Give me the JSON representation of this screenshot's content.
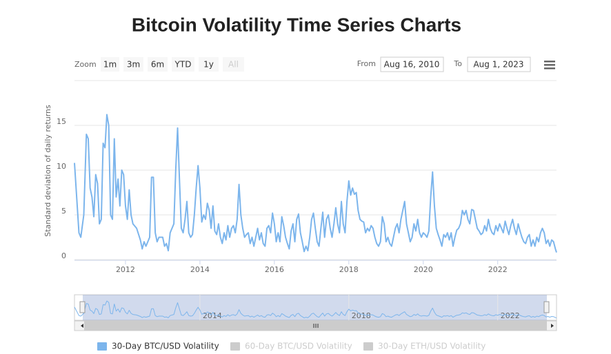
{
  "chart_data": {
    "type": "line",
    "title": "Bitcoin Volatility Time Series Charts",
    "ylabel": "Standard deviation of daily returns",
    "range_selector": {
      "zoom_label": "Zoom",
      "buttons": [
        "1m",
        "3m",
        "6m",
        "YTD",
        "1y",
        "All"
      ],
      "from_label": "From",
      "from_value": "Aug 16, 2010",
      "to_label": "To",
      "to_value": "Aug 1, 2023"
    },
    "xlim": [
      2010.63,
      2023.58
    ],
    "xticks": [
      2012,
      2014,
      2016,
      2018,
      2020,
      2022
    ],
    "navigator_xticks": [
      2014,
      2018,
      2022
    ],
    "ylim": [
      0,
      20
    ],
    "yticks": [
      0,
      5,
      10,
      15
    ],
    "grid": true,
    "x": [
      2010.63,
      2010.75,
      2010.8,
      2010.88,
      2010.95,
      2011.0,
      2011.05,
      2011.1,
      2011.15,
      2011.2,
      2011.25,
      2011.3,
      2011.35,
      2011.4,
      2011.45,
      2011.5,
      2011.55,
      2011.6,
      2011.65,
      2011.7,
      2011.75,
      2011.8,
      2011.85,
      2011.9,
      2011.95,
      2012.0,
      2012.05,
      2012.1,
      2012.15,
      2012.2,
      2012.3,
      2012.4,
      2012.45,
      2012.5,
      2012.55,
      2012.65,
      2012.7,
      2012.75,
      2012.8,
      2012.85,
      2012.9,
      2013.0,
      2013.05,
      2013.1,
      2013.15,
      2013.2,
      2013.3,
      2013.35,
      2013.4,
      2013.45,
      2013.5,
      2013.55,
      2013.6,
      2013.65,
      2013.7,
      2013.75,
      2013.8,
      2013.85,
      2013.9,
      2013.95,
      2014.0,
      2014.05,
      2014.1,
      2014.15,
      2014.2,
      2014.25,
      2014.3,
      2014.35,
      2014.4,
      2014.45,
      2014.5,
      2014.55,
      2014.6,
      2014.65,
      2014.7,
      2014.75,
      2014.8,
      2014.85,
      2014.9,
      2014.95,
      2015.0,
      2015.05,
      2015.1,
      2015.15,
      2015.2,
      2015.25,
      2015.3,
      2015.35,
      2015.4,
      2015.45,
      2015.5,
      2015.55,
      2015.6,
      2015.65,
      2015.7,
      2015.75,
      2015.8,
      2015.85,
      2015.9,
      2015.95,
      2016.0,
      2016.05,
      2016.1,
      2016.15,
      2016.2,
      2016.25,
      2016.3,
      2016.35,
      2016.4,
      2016.45,
      2016.5,
      2016.55,
      2016.6,
      2016.65,
      2016.7,
      2016.75,
      2016.8,
      2016.85,
      2016.9,
      2016.95,
      2017.0,
      2017.05,
      2017.1,
      2017.15,
      2017.2,
      2017.25,
      2017.3,
      2017.35,
      2017.4,
      2017.45,
      2017.5,
      2017.55,
      2017.6,
      2017.65,
      2017.7,
      2017.75,
      2017.8,
      2017.85,
      2017.9,
      2017.95,
      2018.0,
      2018.05,
      2018.1,
      2018.15,
      2018.2,
      2018.25,
      2018.3,
      2018.35,
      2018.4,
      2018.45,
      2018.5,
      2018.55,
      2018.6,
      2018.65,
      2018.7,
      2018.75,
      2018.8,
      2018.85,
      2018.9,
      2018.95,
      2019.0,
      2019.05,
      2019.1,
      2019.15,
      2019.2,
      2019.25,
      2019.3,
      2019.35,
      2019.4,
      2019.45,
      2019.5,
      2019.55,
      2019.6,
      2019.65,
      2019.7,
      2019.75,
      2019.8,
      2019.85,
      2019.9,
      2019.95,
      2020.0,
      2020.05,
      2020.1,
      2020.15,
      2020.2,
      2020.25,
      2020.3,
      2020.35,
      2020.4,
      2020.45,
      2020.5,
      2020.55,
      2020.6,
      2020.65,
      2020.7,
      2020.75,
      2020.8,
      2020.85,
      2020.9,
      2020.95,
      2021.0,
      2021.05,
      2021.1,
      2021.15,
      2021.2,
      2021.25,
      2021.3,
      2021.35,
      2021.4,
      2021.45,
      2021.5,
      2021.55,
      2021.6,
      2021.65,
      2021.7,
      2021.75,
      2021.8,
      2021.85,
      2021.9,
      2021.95,
      2022.0,
      2022.05,
      2022.1,
      2022.15,
      2022.2,
      2022.25,
      2022.3,
      2022.35,
      2022.4,
      2022.45,
      2022.5,
      2022.55,
      2022.6,
      2022.65,
      2022.7,
      2022.75,
      2022.8,
      2022.85,
      2022.9,
      2022.95,
      2023.0,
      2023.05,
      2023.1,
      2023.15,
      2023.2,
      2023.25,
      2023.3,
      2023.35,
      2023.4,
      2023.45,
      2023.5,
      2023.55,
      2023.58
    ],
    "series": [
      {
        "name": "30-Day BTC/USD Volatility",
        "color": "#7cb5ec",
        "visible": true,
        "values": [
          10.8,
          3,
          2.5,
          5,
          14,
          13.5,
          8,
          7,
          4.8,
          9.5,
          8.5,
          4,
          4.5,
          13,
          12.5,
          16.2,
          15,
          5,
          4.5,
          13.5,
          7,
          9,
          6,
          10,
          9.5,
          6,
          4.5,
          7.8,
          5,
          4,
          3.5,
          2.2,
          1.2,
          2,
          1.5,
          2.5,
          9.2,
          9.2,
          3,
          2,
          2.5,
          2.5,
          1.5,
          1.8,
          1,
          3,
          4,
          10,
          14.7,
          9,
          3.5,
          3,
          4.5,
          6.5,
          3,
          2.5,
          2.8,
          5,
          8,
          10.5,
          8,
          4.2,
          5,
          4.5,
          6.3,
          5.5,
          3.5,
          6,
          3.2,
          2.8,
          4,
          2.5,
          1.8,
          3,
          2.2,
          3.8,
          2.5,
          3.5,
          3.8,
          3,
          4.5,
          8.4,
          5,
          3.5,
          2.5,
          2.8,
          3,
          1.8,
          2.5,
          1.5,
          2.5,
          3.5,
          2.2,
          3,
          1.8,
          1.5,
          3.5,
          3.8,
          3,
          5.2,
          4,
          2,
          3,
          2,
          4.8,
          3.8,
          2.5,
          1.8,
          1.2,
          3.2,
          4,
          2,
          4.5,
          5.1,
          3,
          2,
          0.9,
          1.5,
          1,
          2.5,
          4.5,
          5.2,
          3.5,
          2,
          1.5,
          3.5,
          5.3,
          2.5,
          4.5,
          5,
          3.5,
          2.5,
          4,
          5.8,
          4,
          3,
          6.5,
          4,
          3,
          6.5,
          8.8,
          7.2,
          8,
          7.3,
          7.5,
          5.5,
          4.5,
          4.3,
          4.2,
          3,
          3.5,
          3.2,
          3.8,
          3.5,
          2.5,
          1.8,
          1.5,
          2,
          4.8,
          4,
          2,
          2.5,
          1.8,
          1.5,
          2.5,
          3.5,
          4,
          3,
          4.5,
          5.5,
          6.5,
          4,
          3,
          2,
          2.5,
          4,
          3.2,
          4.5,
          3,
          2.5,
          3,
          2.8,
          2.5,
          3.2,
          7,
          9.8,
          6,
          3.5,
          2.8,
          2.2,
          1.5,
          2.8,
          2.5,
          3,
          2.2,
          3,
          1.5,
          2.5,
          3.3,
          3.5,
          4,
          5.5,
          5,
          5.5,
          4.5,
          4,
          5.6,
          5.5,
          4.5,
          3.5,
          3.2,
          2.8,
          3,
          3.8,
          3.2,
          4.5,
          3.5,
          3,
          2.8,
          3.8,
          3.2,
          4,
          3.5,
          3,
          4.3,
          3.5,
          2.8,
          3.8,
          4.5,
          3.5,
          2.8,
          4,
          3.2,
          2.5,
          2,
          1.8,
          2.5,
          2.8,
          1.5,
          2.2,
          1.5,
          2.5,
          2,
          3,
          3.5,
          3,
          1.8,
          2.2,
          1.5,
          2.2,
          2,
          1.2,
          0.8
        ]
      },
      {
        "name": "60-Day BTC/USD Volatility",
        "color": "#cccccc",
        "visible": false
      },
      {
        "name": "30-Day ETH/USD Volatility",
        "color": "#cccccc",
        "visible": false
      }
    ]
  }
}
